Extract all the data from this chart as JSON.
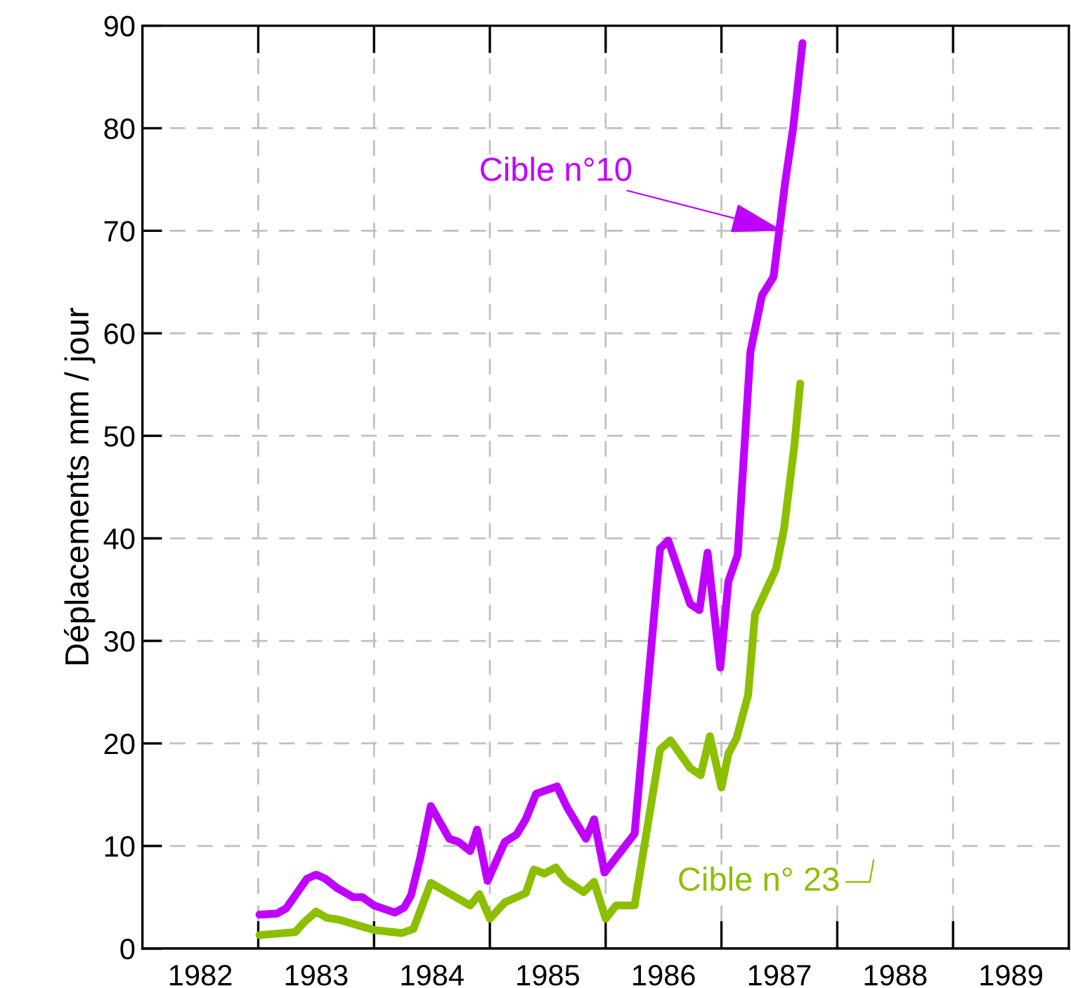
{
  "chart_data": {
    "type": "line",
    "ylabel": "Déplacements mm / jour",
    "xlim": [
      1982,
      1990
    ],
    "ylim": [
      0,
      90
    ],
    "xticks": [
      {
        "value": 1982.5,
        "label": "1982"
      },
      {
        "value": 1983,
        "label": null
      },
      {
        "value": 1983.5,
        "label": "1983"
      },
      {
        "value": 1984,
        "label": null
      },
      {
        "value": 1984.5,
        "label": "1984"
      },
      {
        "value": 1985,
        "label": null
      },
      {
        "value": 1985.5,
        "label": "1985"
      },
      {
        "value": 1986,
        "label": null
      },
      {
        "value": 1986.5,
        "label": "1986"
      },
      {
        "value": 1987,
        "label": null
      },
      {
        "value": 1987.5,
        "label": "1987"
      },
      {
        "value": 1988,
        "label": null
      },
      {
        "value": 1988.5,
        "label": "1988"
      },
      {
        "value": 1989,
        "label": null
      },
      {
        "value": 1989.5,
        "label": "1989"
      }
    ],
    "yticks": [
      0,
      10,
      20,
      30,
      40,
      50,
      60,
      70,
      80,
      90
    ],
    "grid": true,
    "marker": "none",
    "line_style": "solid",
    "series": [
      {
        "color": "#c000ff",
        "x": [
          1983.01,
          1983.16,
          1983.24,
          1983.34,
          1983.42,
          1983.5,
          1983.58,
          1983.68,
          1983.82,
          1983.9,
          1984.0,
          1984.18,
          1984.26,
          1984.32,
          1984.4,
          1984.49,
          1984.65,
          1984.73,
          1984.83,
          1984.89,
          1984.98,
          1985.13,
          1985.23,
          1985.31,
          1985.4,
          1985.58,
          1985.67,
          1985.83,
          1985.9,
          1985.99,
          1986.25,
          1986.47,
          1986.54,
          1986.73,
          1986.81,
          1986.88,
          1986.99,
          1987.06,
          1987.14,
          1987.25,
          1987.35,
          1987.45,
          1987.55,
          1987.62,
          1987.7
        ],
        "values": [
          3.3,
          3.4,
          3.9,
          5.5,
          6.8,
          7.2,
          6.8,
          5.9,
          5.0,
          5.0,
          4.2,
          3.5,
          4.0,
          5.2,
          8.9,
          13.9,
          10.7,
          10.4,
          9.5,
          11.6,
          6.6,
          10.4,
          11.1,
          12.6,
          15.1,
          15.8,
          13.7,
          10.7,
          12.6,
          7.4,
          11.2,
          39.0,
          39.8,
          33.6,
          33.0,
          38.6,
          27.4,
          35.8,
          38.4,
          58.2,
          63.7,
          65.5,
          74.7,
          80.1,
          88.3
        ]
      },
      {
        "color": "#8cbf00",
        "x": [
          1983.01,
          1983.32,
          1983.4,
          1983.5,
          1983.59,
          1983.7,
          1984.0,
          1984.24,
          1984.34,
          1984.49,
          1984.83,
          1984.91,
          1985.0,
          1985.13,
          1985.31,
          1985.38,
          1985.47,
          1985.57,
          1985.65,
          1985.81,
          1985.9,
          1986.0,
          1986.09,
          1986.25,
          1986.47,
          1986.56,
          1986.73,
          1986.82,
          1986.9,
          1987.0,
          1987.06,
          1987.13,
          1987.23,
          1987.29,
          1987.47,
          1987.54,
          1987.63,
          1987.68
        ],
        "values": [
          1.3,
          1.6,
          2.6,
          3.6,
          3.0,
          2.8,
          1.8,
          1.5,
          1.9,
          6.4,
          4.2,
          5.3,
          2.9,
          4.5,
          5.4,
          7.7,
          7.3,
          7.9,
          6.7,
          5.5,
          6.5,
          2.9,
          4.2,
          4.2,
          19.4,
          20.3,
          17.6,
          16.9,
          20.7,
          15.7,
          19.0,
          20.5,
          24.7,
          32.6,
          37.0,
          40.9,
          49.1,
          55.1
        ]
      }
    ],
    "annotations": [
      {
        "text": "Cible n°10",
        "x": 1987.53,
        "y": 70
      },
      "Cible n° 23"
    ]
  }
}
